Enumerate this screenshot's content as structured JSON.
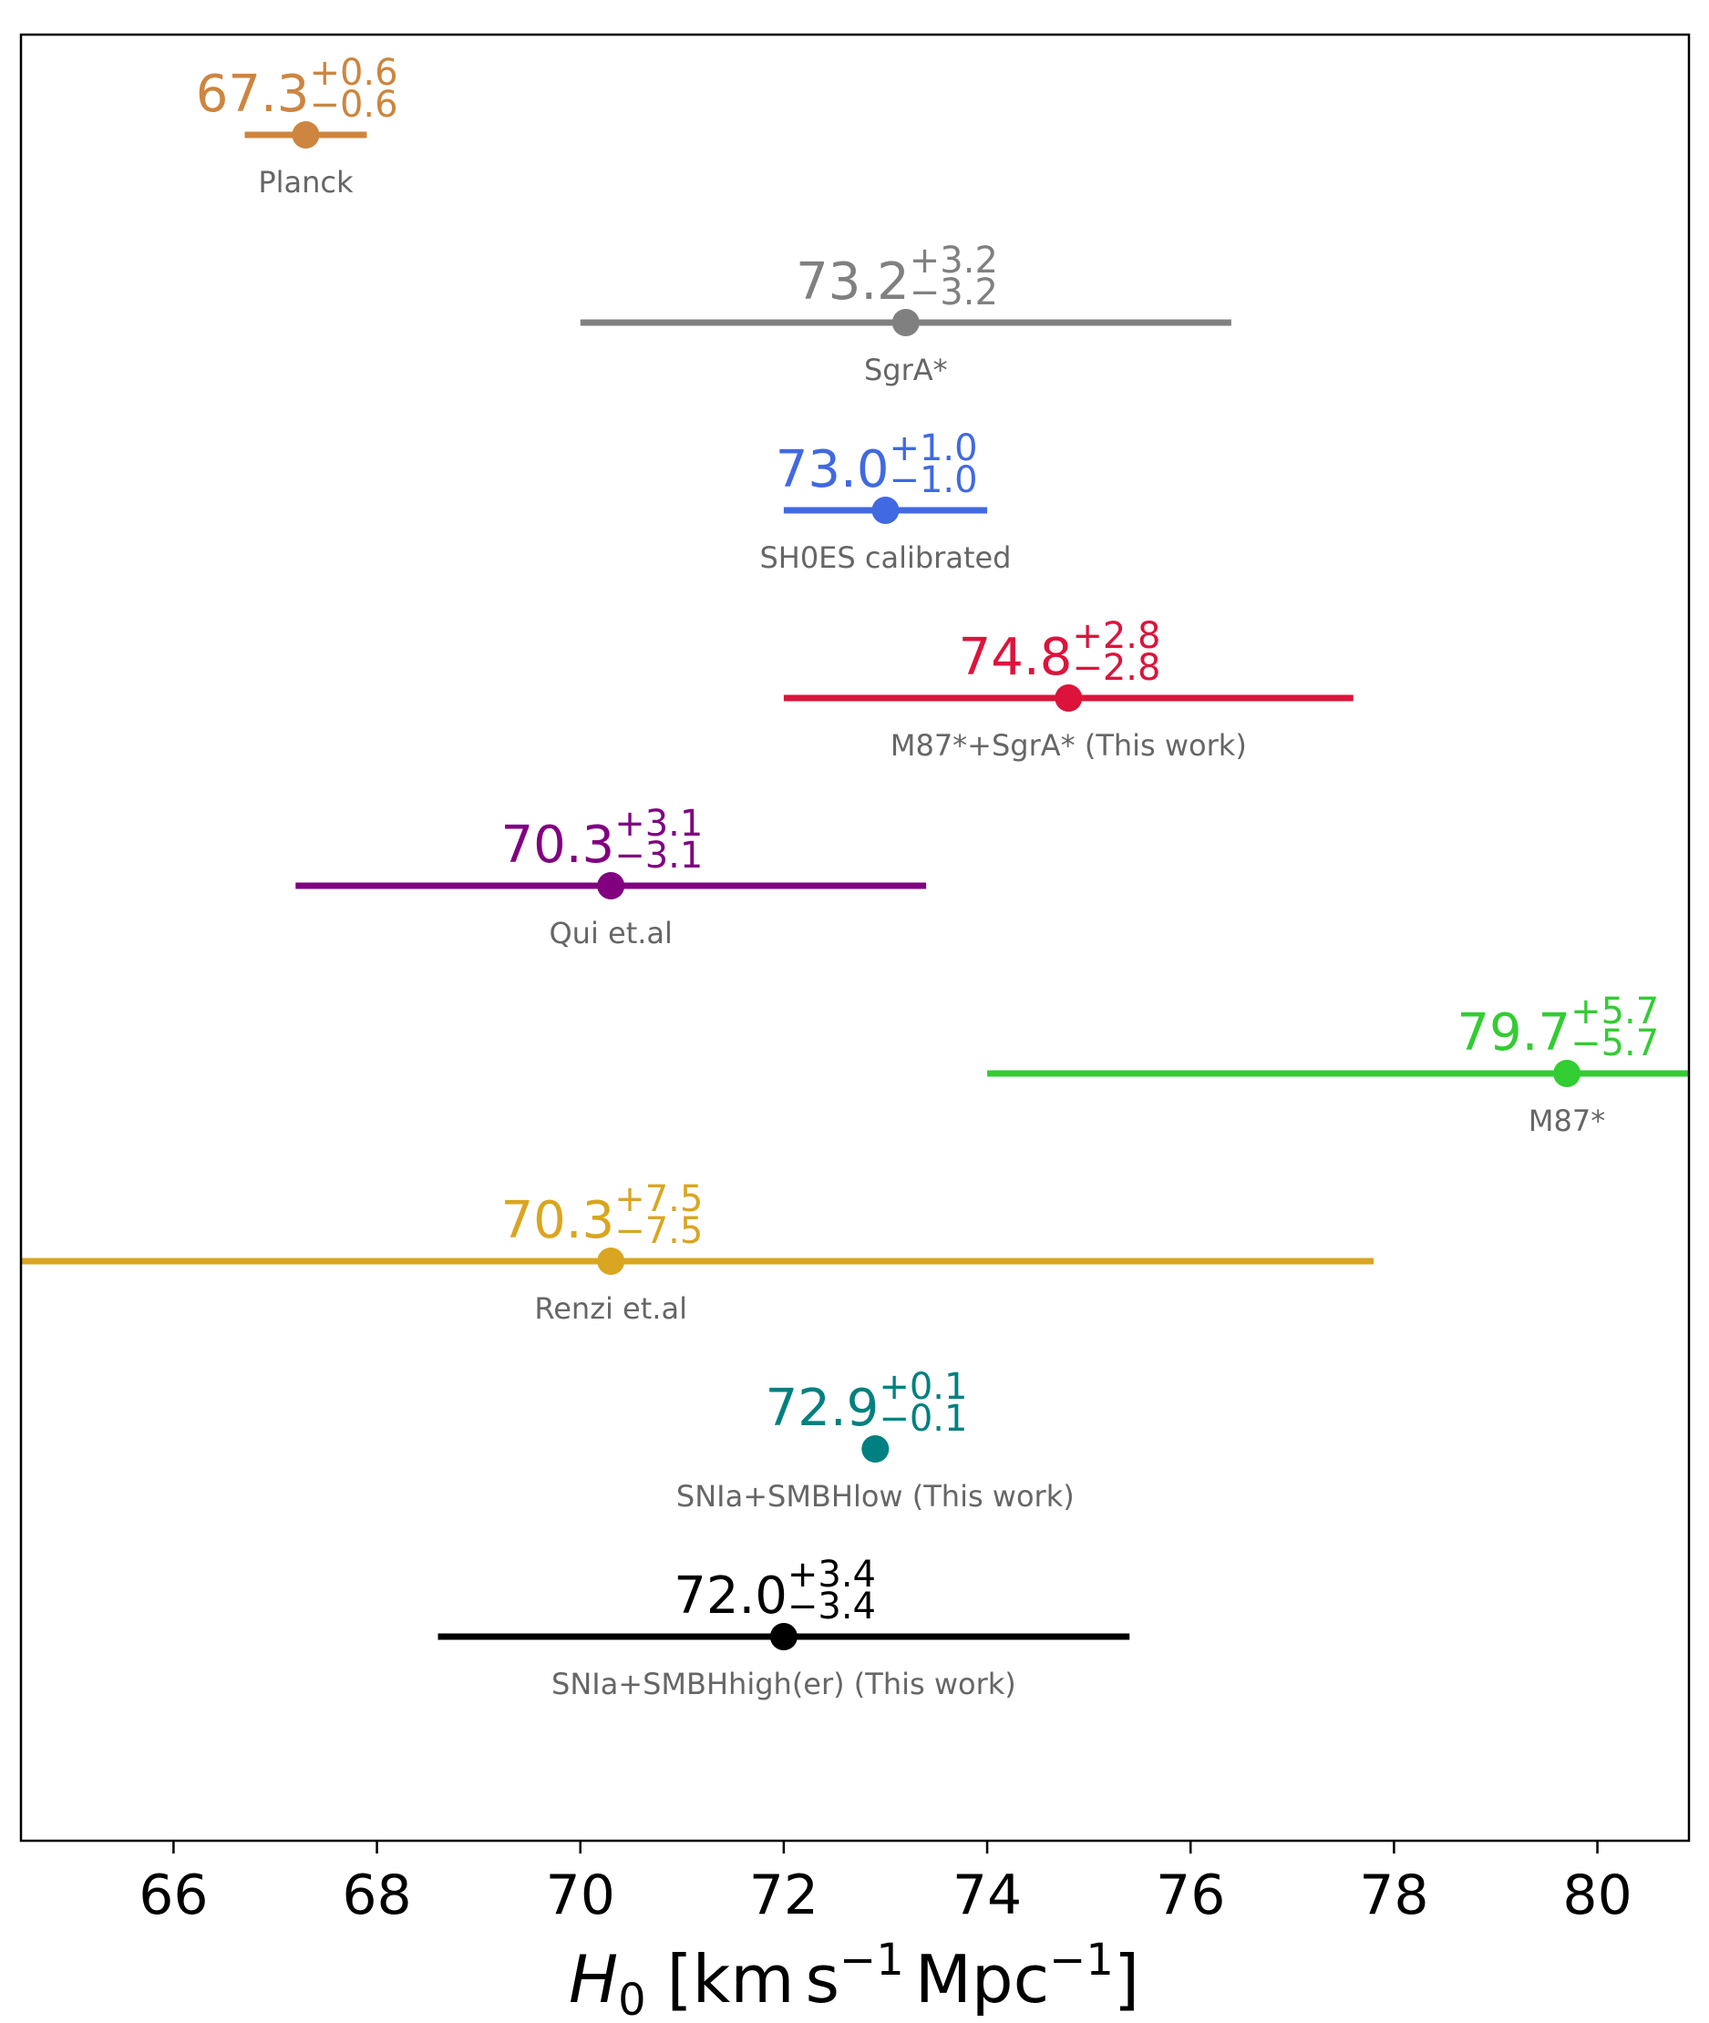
{
  "chart_data": {
    "type": "errorbar",
    "title": "",
    "xlabel": "",
    "xlim": [
      64.5,
      80.9
    ],
    "xticks": [
      66,
      68,
      70,
      72,
      74,
      76,
      78,
      80
    ],
    "xtick_labels": [
      "66",
      "68",
      "70",
      "72",
      "74",
      "76",
      "78",
      "80"
    ],
    "grid": false,
    "points": [
      {
        "label": "Planck",
        "value": 67.3,
        "err_plus": 0.6,
        "err_minus": 0.6,
        "value_text": "67.3",
        "plus_text": "+0.6",
        "minus_text": "−0.6",
        "color": "#cd853f"
      },
      {
        "label": "SgrA*",
        "value": 73.2,
        "err_plus": 3.2,
        "err_minus": 3.2,
        "value_text": "73.2",
        "plus_text": "+3.2",
        "minus_text": "−3.2",
        "color": "#808080"
      },
      {
        "label": "SH0ES calibrated",
        "value": 73.0,
        "err_plus": 1.0,
        "err_minus": 1.0,
        "value_text": "73.0",
        "plus_text": "+1.0",
        "minus_text": "−1.0",
        "color": "#4169e1"
      },
      {
        "label": "M87*+SgrA* (This work)",
        "value": 74.8,
        "err_plus": 2.8,
        "err_minus": 2.8,
        "value_text": "74.8",
        "plus_text": "+2.8",
        "minus_text": "−2.8",
        "color": "#dc143c"
      },
      {
        "label": "Qui et.al",
        "value": 70.3,
        "err_plus": 3.1,
        "err_minus": 3.1,
        "value_text": "70.3",
        "plus_text": "+3.1",
        "minus_text": "−3.1",
        "color": "#800080"
      },
      {
        "label": "M87*",
        "value": 79.7,
        "err_plus": 5.7,
        "err_minus": 5.7,
        "value_text": "79.7",
        "plus_text": "+5.7",
        "minus_text": "−5.7",
        "color": "#32cd32"
      },
      {
        "label": "Renzi et.al",
        "value": 70.3,
        "err_plus": 7.5,
        "err_minus": 7.5,
        "value_text": "70.3",
        "plus_text": "+7.5",
        "minus_text": "−7.5",
        "color": "#daa520"
      },
      {
        "label": "SNIa+SMBHlow (This work)",
        "value": 72.9,
        "err_plus": 0.1,
        "err_minus": 0.1,
        "value_text": "72.9",
        "plus_text": "+0.1",
        "minus_text": "−0.1",
        "color": "#008080"
      },
      {
        "label": "SNIa+SMBHhigh(er) (This work)",
        "value": 72.0,
        "err_plus": 3.4,
        "err_minus": 3.4,
        "value_text": "72.0",
        "plus_text": "+3.4",
        "minus_text": "−3.4",
        "color": "#000000"
      }
    ]
  }
}
